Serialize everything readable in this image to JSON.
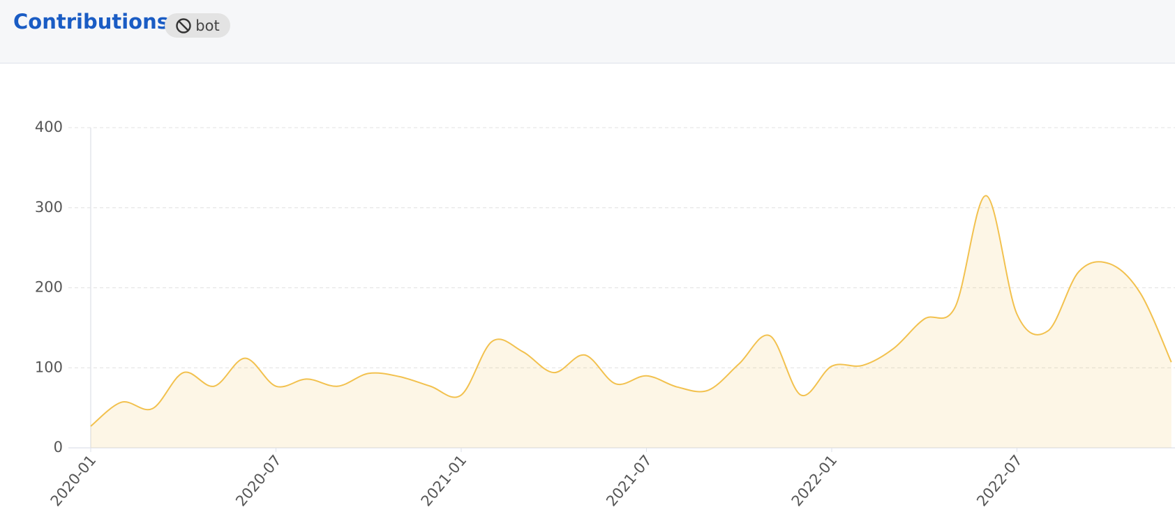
{
  "header": {
    "title": "Contributions",
    "badge": "bot"
  },
  "chart_data": {
    "type": "area",
    "x": [
      "2020-01",
      "2020-02",
      "2020-03",
      "2020-04",
      "2020-05",
      "2020-06",
      "2020-07",
      "2020-08",
      "2020-09",
      "2020-10",
      "2020-11",
      "2020-12",
      "2021-01",
      "2021-02",
      "2021-03",
      "2021-04",
      "2021-05",
      "2021-06",
      "2021-07",
      "2021-08",
      "2021-09",
      "2021-10",
      "2021-11",
      "2021-12",
      "2022-01",
      "2022-02",
      "2022-03",
      "2022-04",
      "2022-05",
      "2022-06",
      "2022-07",
      "2022-08",
      "2022-09",
      "2022-10",
      "2022-11",
      "2022-12"
    ],
    "values": [
      27,
      57,
      49,
      94,
      77,
      112,
      77,
      86,
      77,
      93,
      89,
      77,
      66,
      133,
      120,
      94,
      116,
      80,
      90,
      76,
      72,
      105,
      140,
      66,
      102,
      103,
      124,
      161,
      176,
      315,
      167,
      146,
      220,
      230,
      193,
      107
    ],
    "color": "#f2c14e",
    "ylim": [
      0,
      400
    ],
    "yticks": [
      0,
      100,
      200,
      300,
      400
    ],
    "xticks": [
      "2020-01",
      "2020-07",
      "2021-01",
      "2021-07",
      "2022-01",
      "2022-07"
    ],
    "grid": true
  }
}
